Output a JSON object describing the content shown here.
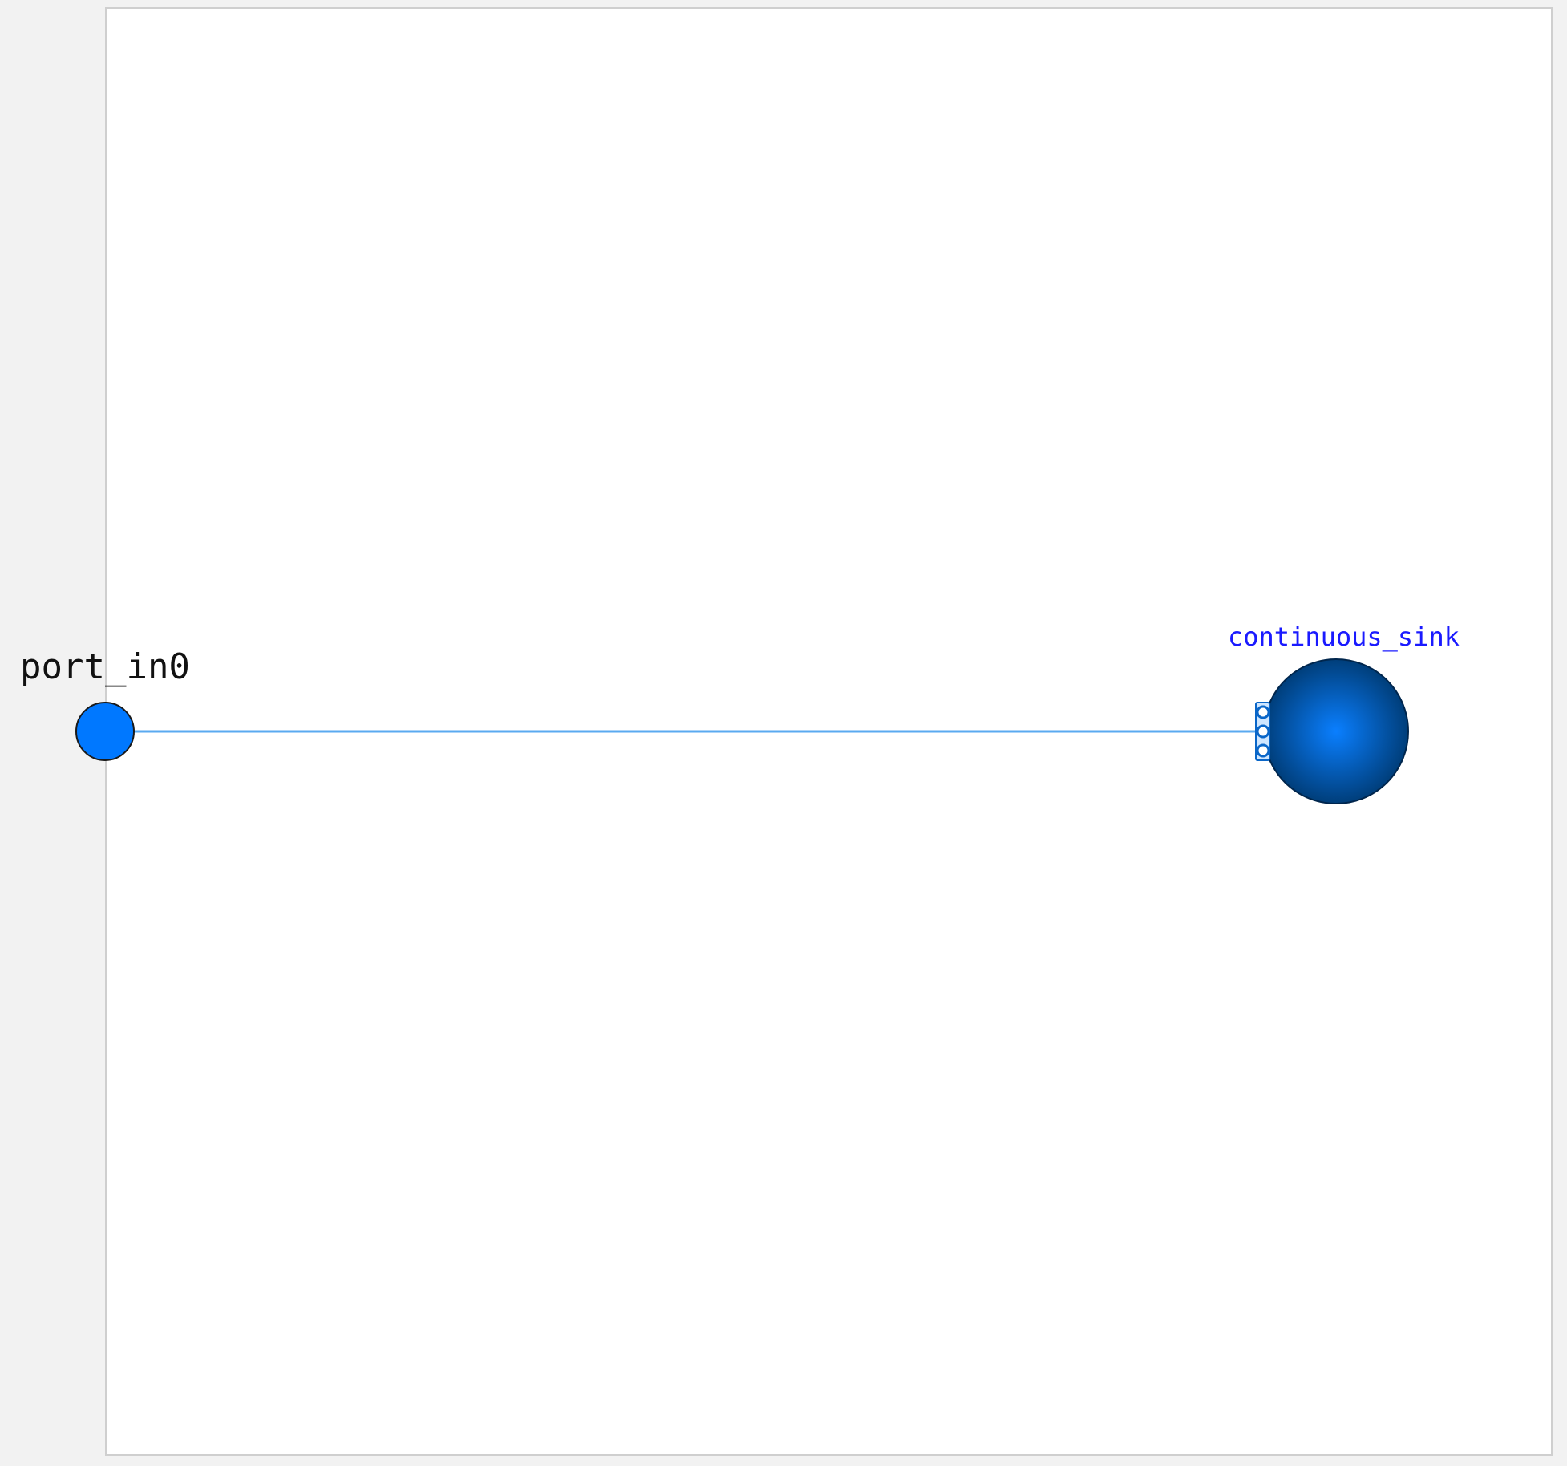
{
  "diagram": {
    "port": {
      "label": "port_in0",
      "fill_color": "#0078ff",
      "stroke_color": "#1a1a1a"
    },
    "connection": {
      "color": "#5aaaf0"
    },
    "block": {
      "label": "continuous_sink",
      "label_color": "#1a1aff",
      "gradient_inner": "#0a7fff",
      "gradient_outer": "#003e7a",
      "port_group_color": "#0a66c8"
    }
  }
}
